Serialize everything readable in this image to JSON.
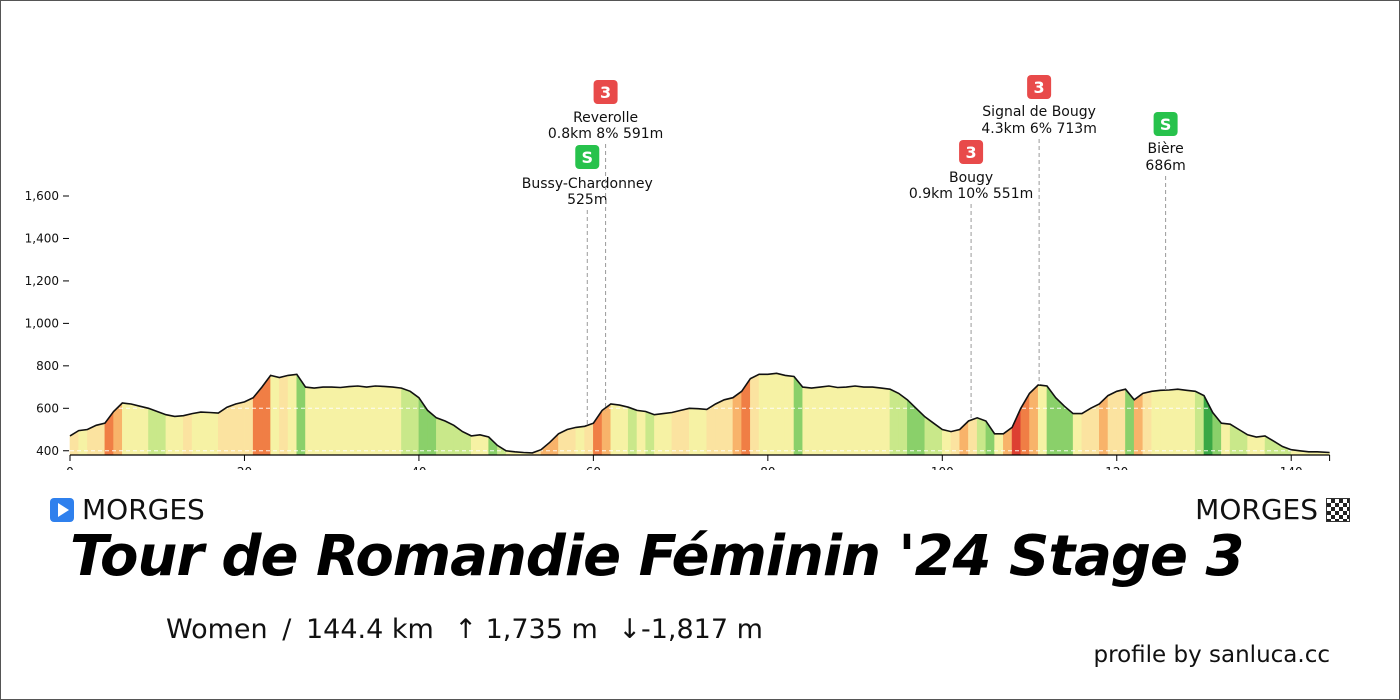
{
  "chart_data": {
    "type": "area",
    "xlabel": "",
    "ylabel": "",
    "x_ticks": [
      0,
      20,
      40,
      60,
      80,
      100,
      120,
      140
    ],
    "y_ticks": [
      400,
      600,
      800,
      1000,
      1200,
      1400,
      1600
    ],
    "y_tick_labels": [
      "400",
      "600",
      "800",
      "1,000",
      "1,200",
      "1,400",
      "1,600"
    ],
    "xlim": [
      0,
      144.4
    ],
    "ylim": [
      380,
      1650
    ],
    "gridlines": [
      400,
      600,
      800
    ],
    "profile": [
      [
        0,
        470
      ],
      [
        1,
        495
      ],
      [
        2,
        500
      ],
      [
        3,
        520
      ],
      [
        4,
        530
      ],
      [
        5,
        585
      ],
      [
        6,
        625
      ],
      [
        7,
        620
      ],
      [
        8,
        610
      ],
      [
        9,
        600
      ],
      [
        10,
        585
      ],
      [
        11,
        570
      ],
      [
        12,
        562
      ],
      [
        13,
        565
      ],
      [
        14,
        575
      ],
      [
        15,
        582
      ],
      [
        16,
        580
      ],
      [
        17,
        578
      ],
      [
        18,
        605
      ],
      [
        19,
        620
      ],
      [
        20,
        630
      ],
      [
        21,
        650
      ],
      [
        22,
        700
      ],
      [
        23,
        755
      ],
      [
        24,
        745
      ],
      [
        25,
        755
      ],
      [
        26,
        760
      ],
      [
        27,
        700
      ],
      [
        28,
        695
      ],
      [
        29,
        700
      ],
      [
        30,
        700
      ],
      [
        31,
        698
      ],
      [
        32,
        702
      ],
      [
        33,
        705
      ],
      [
        34,
        700
      ],
      [
        35,
        705
      ],
      [
        36,
        703
      ],
      [
        37,
        700
      ],
      [
        38,
        695
      ],
      [
        39,
        680
      ],
      [
        40,
        650
      ],
      [
        41,
        590
      ],
      [
        42,
        555
      ],
      [
        43,
        540
      ],
      [
        44,
        520
      ],
      [
        45,
        490
      ],
      [
        46,
        470
      ],
      [
        47,
        475
      ],
      [
        48,
        465
      ],
      [
        49,
        425
      ],
      [
        50,
        400
      ],
      [
        51,
        395
      ],
      [
        52,
        392
      ],
      [
        53,
        390
      ],
      [
        54,
        405
      ],
      [
        55,
        440
      ],
      [
        56,
        480
      ],
      [
        57,
        500
      ],
      [
        58,
        510
      ],
      [
        59,
        515
      ],
      [
        60,
        530
      ],
      [
        61,
        590
      ],
      [
        62,
        620
      ],
      [
        63,
        615
      ],
      [
        64,
        605
      ],
      [
        65,
        590
      ],
      [
        66,
        585
      ],
      [
        67,
        570
      ],
      [
        68,
        575
      ],
      [
        69,
        580
      ],
      [
        70,
        590
      ],
      [
        71,
        600
      ],
      [
        72,
        598
      ],
      [
        73,
        595
      ],
      [
        74,
        620
      ],
      [
        75,
        640
      ],
      [
        76,
        650
      ],
      [
        77,
        680
      ],
      [
        78,
        740
      ],
      [
        79,
        760
      ],
      [
        80,
        760
      ],
      [
        81,
        765
      ],
      [
        82,
        755
      ],
      [
        83,
        750
      ],
      [
        84,
        700
      ],
      [
        85,
        695
      ],
      [
        86,
        700
      ],
      [
        87,
        705
      ],
      [
        88,
        698
      ],
      [
        89,
        700
      ],
      [
        90,
        705
      ],
      [
        91,
        700
      ],
      [
        92,
        700
      ],
      [
        93,
        695
      ],
      [
        94,
        690
      ],
      [
        95,
        670
      ],
      [
        96,
        640
      ],
      [
        97,
        600
      ],
      [
        98,
        560
      ],
      [
        99,
        530
      ],
      [
        100,
        500
      ],
      [
        101,
        490
      ],
      [
        102,
        500
      ],
      [
        103,
        540
      ],
      [
        104,
        555
      ],
      [
        105,
        540
      ],
      [
        106,
        480
      ],
      [
        107,
        480
      ],
      [
        108,
        510
      ],
      [
        109,
        600
      ],
      [
        110,
        670
      ],
      [
        111,
        710
      ],
      [
        112,
        705
      ],
      [
        113,
        650
      ],
      [
        114,
        610
      ],
      [
        115,
        575
      ],
      [
        116,
        575
      ],
      [
        117,
        600
      ],
      [
        118,
        620
      ],
      [
        119,
        660
      ],
      [
        120,
        680
      ],
      [
        121,
        690
      ],
      [
        122,
        640
      ],
      [
        123,
        670
      ],
      [
        124,
        680
      ],
      [
        125,
        685
      ],
      [
        126,
        686
      ],
      [
        127,
        690
      ],
      [
        128,
        685
      ],
      [
        129,
        680
      ],
      [
        130,
        660
      ],
      [
        131,
        580
      ],
      [
        132,
        530
      ],
      [
        133,
        525
      ],
      [
        134,
        500
      ],
      [
        135,
        475
      ],
      [
        136,
        465
      ],
      [
        137,
        470
      ],
      [
        138,
        445
      ],
      [
        139,
        420
      ],
      [
        140,
        405
      ],
      [
        141,
        400
      ],
      [
        142,
        395
      ],
      [
        143,
        395
      ],
      [
        144.4,
        392
      ]
    ],
    "climbs": [
      {
        "km": 59.3,
        "badge": "S",
        "color": "#27c24c",
        "name": "Bussy-Chardonney",
        "stats": "525m"
      },
      {
        "km": 61.4,
        "badge": "3",
        "color": "#e84a4a",
        "name": "Reverolle",
        "stats": "0.8km 8% 591m"
      },
      {
        "km": 103.3,
        "badge": "3",
        "color": "#e84a4a",
        "name": "Bougy",
        "stats": "0.9km 10% 551m"
      },
      {
        "km": 111.1,
        "badge": "3",
        "color": "#e84a4a",
        "name": "Signal de Bougy",
        "stats": "4.3km 6% 713m"
      },
      {
        "km": 125.6,
        "badge": "S",
        "color": "#27c24c",
        "name": "Bière",
        "stats": "686m"
      }
    ]
  },
  "start": {
    "label": "MORGES",
    "icon": "play-icon"
  },
  "finish": {
    "label": "MORGES",
    "icon": "checkered-flag-icon"
  },
  "title": "Tour de Romandie Féminin '24 Stage 3",
  "stats": {
    "category": "Women",
    "separator": "/",
    "distance": "144.4 km",
    "ascent": "↑ 1,735 m",
    "descent": "↓-1,817 m"
  },
  "credit": "profile by sanluca.cc"
}
